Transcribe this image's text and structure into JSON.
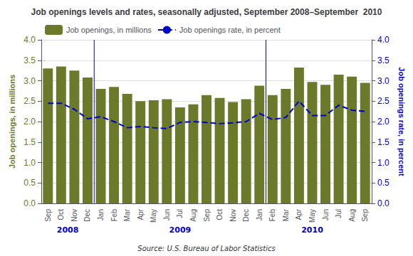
{
  "chart_data": {
    "type": "bar",
    "title": "Job openings levels and rates, seasonally adjusted, September 2008–September  2010",
    "categories": [
      "Sep",
      "Oct",
      "Nov",
      "Dec",
      "Jan",
      "Feb",
      "Mar",
      "Apr",
      "May",
      "Jun",
      "Jul",
      "Aug",
      "Sep",
      "Oct",
      "Nov",
      "Dec",
      "Jan",
      "Feb",
      "Mar",
      "Apr",
      "May",
      "Jun",
      "Jul",
      "Aug",
      "Sep"
    ],
    "series": [
      {
        "name": "Job openings, in millions",
        "type": "bar",
        "color": "#6b7a2a",
        "values": [
          3.3,
          3.35,
          3.25,
          3.08,
          2.8,
          2.85,
          2.68,
          2.5,
          2.52,
          2.55,
          2.35,
          2.42,
          2.65,
          2.58,
          2.48,
          2.55,
          2.88,
          2.65,
          2.8,
          3.32,
          2.97,
          2.9,
          3.15,
          3.1,
          2.95
        ]
      },
      {
        "name": "Job openings rate, in percent",
        "type": "line",
        "axis": "y2",
        "color": "#0000cc",
        "line_style": "dashed",
        "values": [
          2.45,
          2.45,
          2.3,
          2.07,
          2.12,
          2.0,
          1.85,
          1.88,
          1.85,
          1.83,
          1.98,
          2.0,
          1.98,
          1.95,
          1.97,
          2.0,
          2.2,
          2.05,
          2.1,
          2.5,
          2.15,
          2.15,
          2.4,
          2.28,
          2.25
        ]
      }
    ],
    "ylabel": "Job openings, in millions",
    "y2label": "Job openings rate, in percent",
    "ylim": [
      0.0,
      4.0
    ],
    "yticks": [
      {
        "value": 0,
        "label": "0.0"
      },
      {
        "value": 0.5,
        "label": "0.5"
      },
      {
        "value": 1,
        "label": "1.0"
      },
      {
        "value": 1.5,
        "label": "1.5"
      },
      {
        "value": 2,
        "label": "2.0"
      },
      {
        "value": 2.5,
        "label": "2.5"
      },
      {
        "value": 3,
        "label": "3.0"
      },
      {
        "value": 3.5,
        "label": "3.5"
      },
      {
        "value": 4,
        "label": "4.0"
      }
    ],
    "y2lim": [
      0.0,
      4.0
    ],
    "y2ticks": [
      {
        "value": 0,
        "label": "0.0"
      },
      {
        "value": 0.5,
        "label": "0.5"
      },
      {
        "value": 1,
        "label": "1.0"
      },
      {
        "value": 1.5,
        "label": "1.5"
      },
      {
        "value": 2,
        "label": "2.0"
      },
      {
        "value": 2.5,
        "label": "2.5"
      },
      {
        "value": 3,
        "label": "3.0"
      },
      {
        "value": 3.5,
        "label": "3.5"
      },
      {
        "value": 4,
        "label": "4.0"
      }
    ],
    "annotations": [
      {
        "text": "2008",
        "x": 1.5
      },
      {
        "text": "2009",
        "x": 10.0
      },
      {
        "text": "2010",
        "x": 20.0
      }
    ],
    "vlines": [
      3.5,
      16.5
    ],
    "source": "Source: U.S. Bureau of Labor Statistics",
    "legend": "upper left",
    "grid": true
  }
}
